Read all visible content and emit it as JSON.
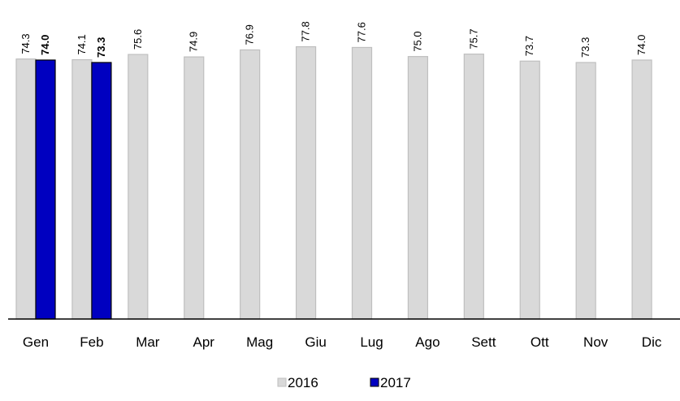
{
  "chart_data": {
    "type": "bar",
    "categories": [
      "Gen",
      "Feb",
      "Mar",
      "Apr",
      "Mag",
      "Giu",
      "Lug",
      "Ago",
      "Sett",
      "Ott",
      "Nov",
      "Dic"
    ],
    "series": [
      {
        "name": "2016",
        "color": "#d9d9d9",
        "values": [
          74.3,
          74.1,
          75.6,
          74.9,
          76.9,
          77.8,
          77.6,
          75.0,
          75.7,
          73.7,
          73.3,
          74.0
        ],
        "value_labels": [
          "74.3",
          "74.1",
          "75.6",
          "74.9",
          "76.9",
          "77.8",
          "77.6",
          "75.0",
          "75.7",
          "73.7",
          "73.3",
          "74.0"
        ]
      },
      {
        "name": "2017",
        "color": "#0000c0",
        "values": [
          74.0,
          73.3,
          null,
          null,
          null,
          null,
          null,
          null,
          null,
          null,
          null,
          null
        ],
        "value_labels": [
          "74.0",
          "73.3",
          null,
          null,
          null,
          null,
          null,
          null,
          null,
          null,
          null,
          null
        ]
      }
    ],
    "ylim": [
      0,
      90
    ]
  }
}
